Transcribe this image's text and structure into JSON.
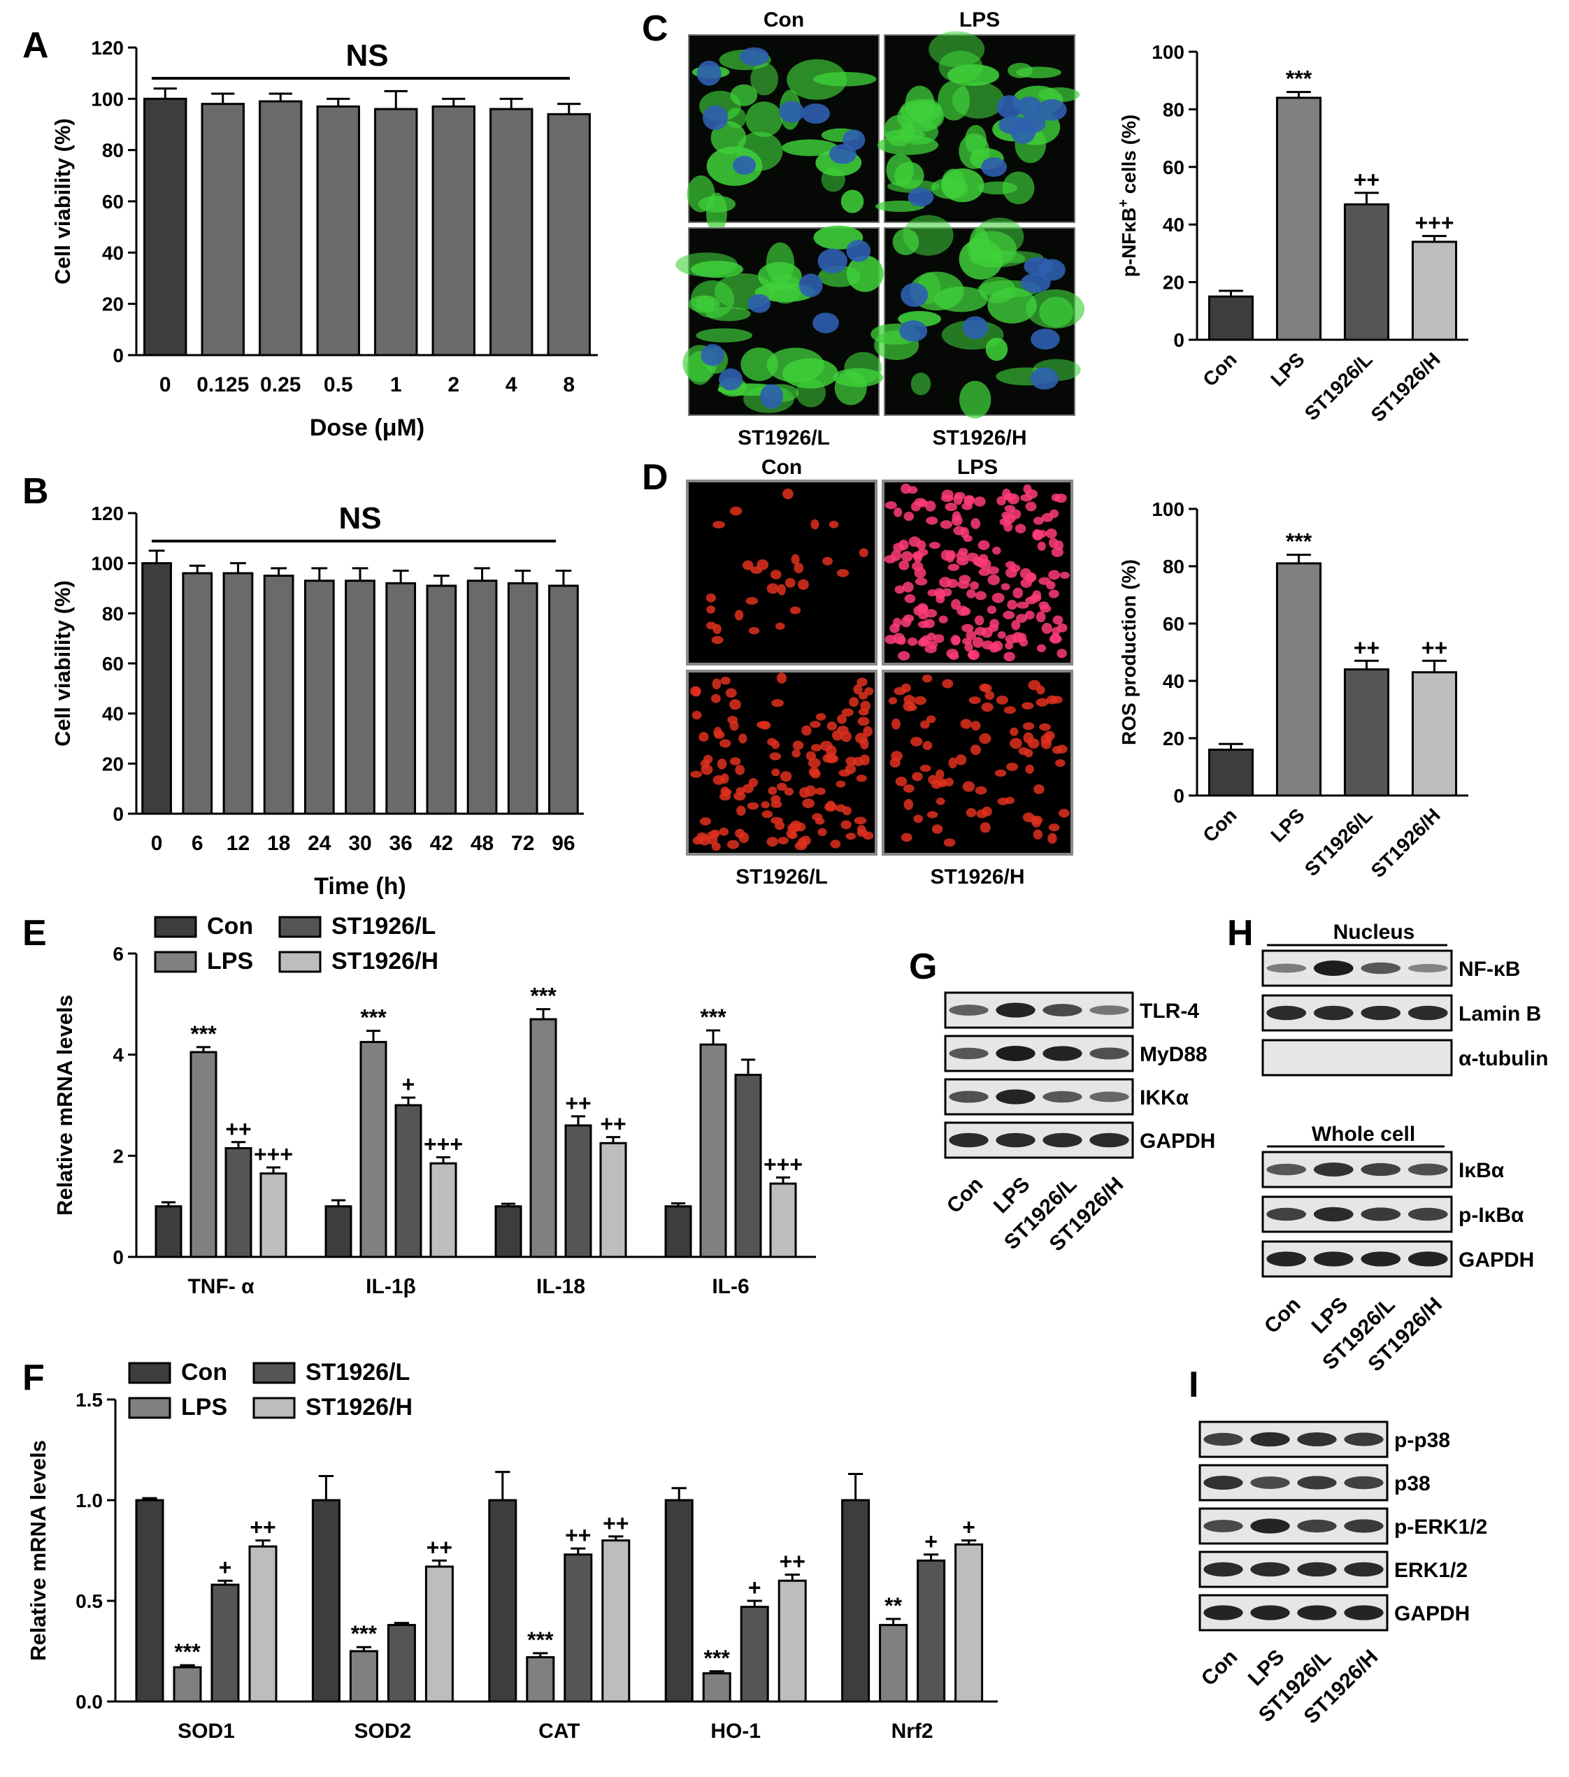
{
  "panel_letters": {
    "A": "A",
    "B": "B",
    "C": "C",
    "D": "D",
    "E": "E",
    "F": "F",
    "G": "G",
    "H": "H",
    "I": "I"
  },
  "colors": {
    "dark": "#3d3d3d",
    "mid": "#808080",
    "dark2": "#555555",
    "light": "#bdbdbd",
    "green": "#3fd13a",
    "nucleus": "#2d5fb0",
    "red": "#e0301e",
    "pink": "#ff3c78"
  },
  "chart_data": [
    {
      "id": "A",
      "type": "bar",
      "title": "NS",
      "xlabel": "Dose (μM)",
      "ylabel": "Cell viability (%)",
      "categories": [
        "0",
        "0.125",
        "0.25",
        "0.5",
        "1",
        "2",
        "4",
        "8"
      ],
      "values": [
        100,
        98,
        99,
        97,
        96,
        97,
        96,
        94
      ],
      "errors": [
        4,
        4,
        3,
        3,
        7,
        3,
        4,
        4
      ],
      "ylim": [
        0,
        120
      ],
      "yticks": [
        0,
        20,
        40,
        60,
        80,
        100,
        120
      ]
    },
    {
      "id": "B",
      "type": "bar",
      "title": "NS",
      "xlabel": "Time (h)",
      "ylabel": "Cell viability (%)",
      "categories": [
        "0",
        "6",
        "12",
        "18",
        "24",
        "30",
        "36",
        "42",
        "48",
        "72",
        "96"
      ],
      "values": [
        100,
        96,
        96,
        95,
        93,
        93,
        92,
        91,
        93,
        92,
        91
      ],
      "errors": [
        5,
        3,
        4,
        3,
        5,
        5,
        5,
        4,
        5,
        5,
        6
      ],
      "ylim": [
        0,
        120
      ],
      "yticks": [
        0,
        20,
        40,
        60,
        80,
        100,
        120
      ]
    },
    {
      "id": "C",
      "type": "bar",
      "ylabel": "p-NFκB+ cells (%)",
      "categories": [
        "Con",
        "LPS",
        "ST1926/L",
        "ST1926/H"
      ],
      "values": [
        15,
        84,
        47,
        34
      ],
      "errors": [
        2,
        2,
        4,
        2
      ],
      "annotations": [
        "",
        "***",
        "++",
        "+++"
      ],
      "ylim": [
        0,
        100
      ],
      "yticks": [
        0,
        20,
        40,
        60,
        80,
        100
      ]
    },
    {
      "id": "D",
      "type": "bar",
      "ylabel": "ROS production (%)",
      "categories": [
        "Con",
        "LPS",
        "ST1926/L",
        "ST1926/H"
      ],
      "values": [
        16,
        81,
        44,
        43
      ],
      "errors": [
        2,
        3,
        3,
        4
      ],
      "annotations": [
        "",
        "***",
        "++",
        "++"
      ],
      "ylim": [
        0,
        100
      ],
      "yticks": [
        0,
        20,
        40,
        60,
        80,
        100
      ]
    },
    {
      "id": "E",
      "type": "bar",
      "ylabel": "Relative mRNA levels",
      "categories": [
        "TNF- α",
        "IL-1β",
        "IL-18",
        "IL-6"
      ],
      "series": [
        {
          "name": "Con",
          "values": [
            1.0,
            1.0,
            1.0,
            1.0
          ],
          "errors": [
            0.08,
            0.12,
            0.05,
            0.06
          ],
          "annotations": [
            "",
            "",
            "",
            ""
          ]
        },
        {
          "name": "LPS",
          "values": [
            4.05,
            4.25,
            4.7,
            4.2
          ],
          "errors": [
            0.1,
            0.22,
            0.2,
            0.28
          ],
          "annotations": [
            "***",
            "***",
            "***",
            "***"
          ]
        },
        {
          "name": "ST1926/L",
          "values": [
            2.15,
            3.0,
            2.6,
            3.6
          ],
          "errors": [
            0.12,
            0.15,
            0.18,
            0.3
          ],
          "annotations": [
            "++",
            "+",
            "++",
            ""
          ]
        },
        {
          "name": "ST1926/H",
          "values": [
            1.65,
            1.85,
            2.25,
            1.45
          ],
          "errors": [
            0.12,
            0.12,
            0.12,
            0.12
          ],
          "annotations": [
            "+++",
            "+++",
            "++",
            "+++"
          ]
        }
      ],
      "ylim": [
        0,
        6
      ],
      "yticks": [
        0,
        2,
        4,
        6
      ],
      "legend": "top-left"
    },
    {
      "id": "F",
      "type": "bar",
      "ylabel": "Relative mRNA levels",
      "categories": [
        "SOD1",
        "SOD2",
        "CAT",
        "HO-1",
        "Nrf2"
      ],
      "series": [
        {
          "name": "Con",
          "values": [
            1.0,
            1.0,
            1.0,
            1.0,
            1.0
          ],
          "errors": [
            0.01,
            0.12,
            0.14,
            0.06,
            0.13
          ],
          "annotations": [
            "",
            "",
            "",
            "",
            ""
          ]
        },
        {
          "name": "LPS",
          "values": [
            0.17,
            0.25,
            0.22,
            0.14,
            0.38
          ],
          "errors": [
            0.01,
            0.02,
            0.02,
            0.01,
            0.03
          ],
          "annotations": [
            "***",
            "***",
            "***",
            "***",
            "**"
          ]
        },
        {
          "name": "ST1926/L",
          "values": [
            0.58,
            0.38,
            0.73,
            0.47,
            0.7
          ],
          "errors": [
            0.02,
            0.01,
            0.03,
            0.03,
            0.03
          ],
          "annotations": [
            "+",
            "",
            "++",
            "+",
            "+"
          ]
        },
        {
          "name": "ST1926/H",
          "values": [
            0.77,
            0.67,
            0.8,
            0.6,
            0.78
          ],
          "errors": [
            0.03,
            0.03,
            0.02,
            0.03,
            0.02
          ],
          "annotations": [
            "++",
            "++",
            "++",
            "++",
            "+"
          ]
        }
      ],
      "ylim": [
        0,
        1.5
      ],
      "yticks": [
        "0.0",
        "0.5",
        "1.0",
        "1.5"
      ],
      "legend": "top-left"
    }
  ],
  "micrographs": {
    "C": {
      "col_titles": [
        "Con",
        "LPS"
      ],
      "bottom_titles": [
        "ST1926/L",
        "ST1926/H"
      ]
    },
    "D": {
      "col_titles": [
        "Con",
        "LPS"
      ],
      "bottom_titles": [
        "ST1926/L",
        "ST1926/H"
      ]
    }
  },
  "blots": {
    "G": {
      "rows": [
        "TLR-4",
        "MyD88",
        "IKKα",
        "GAPDH"
      ],
      "lanes": [
        "Con",
        "LPS",
        "ST1926/L",
        "ST1926/H"
      ],
      "intensity": [
        [
          0.55,
          0.95,
          0.7,
          0.4
        ],
        [
          0.6,
          1.0,
          0.95,
          0.65
        ],
        [
          0.65,
          0.95,
          0.6,
          0.5
        ],
        [
          0.9,
          0.9,
          0.9,
          0.9
        ]
      ]
    },
    "H_nucleus": {
      "header": "Nucleus",
      "rows": [
        "NF-κB",
        "Lamin B",
        "α-tubulin"
      ],
      "intensity": [
        [
          0.35,
          1.0,
          0.6,
          0.3
        ],
        [
          0.9,
          0.9,
          0.9,
          0.9
        ],
        [
          0.05,
          0.05,
          0.05,
          0.05
        ]
      ]
    },
    "H_whole": {
      "header": "Whole cell",
      "rows": [
        "IκBα",
        "p-IκBα",
        "GAPDH"
      ],
      "lanes": [
        "Con",
        "LPS",
        "ST1926/L",
        "ST1926/H"
      ],
      "intensity": [
        [
          0.6,
          0.85,
          0.75,
          0.65
        ],
        [
          0.75,
          0.9,
          0.8,
          0.75
        ],
        [
          0.95,
          0.95,
          0.95,
          0.95
        ]
      ]
    },
    "I": {
      "rows": [
        "p-p38",
        "p38",
        "p-ERK1/2",
        "ERK1/2",
        "GAPDH"
      ],
      "lanes": [
        "Con",
        "LPS",
        "ST1926/L",
        "ST1926/H"
      ],
      "intensity": [
        [
          0.75,
          0.9,
          0.85,
          0.8
        ],
        [
          0.85,
          0.7,
          0.8,
          0.75
        ],
        [
          0.7,
          0.95,
          0.75,
          0.8
        ],
        [
          0.9,
          0.9,
          0.9,
          0.9
        ],
        [
          0.95,
          0.95,
          0.95,
          0.95
        ]
      ]
    }
  }
}
